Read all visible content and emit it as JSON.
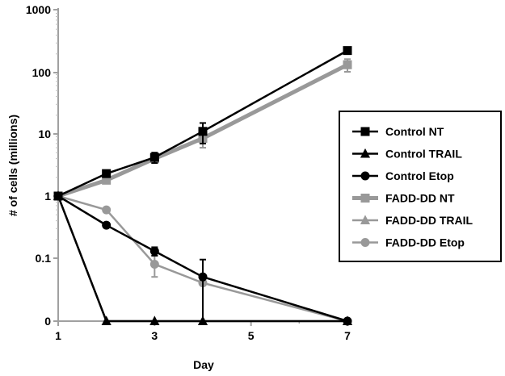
{
  "chart_data": {
    "type": "line",
    "title": "",
    "xlabel": "Day",
    "ylabel": "# of cells (millions)",
    "y_scale": "log",
    "x_ticks": [
      1,
      3,
      5,
      7
    ],
    "y_tick_labels": [
      "1000",
      "100",
      "10",
      "1",
      "0.1",
      "0"
    ],
    "legend_position": "right",
    "series": [
      {
        "name": "Control NT",
        "color": "#000000",
        "marker": "square",
        "x": [
          1,
          2,
          3,
          4,
          7
        ],
        "y": [
          1,
          2.3,
          4.2,
          11,
          220
        ],
        "err": [
          0,
          0,
          0.8,
          4,
          0
        ]
      },
      {
        "name": "Control TRAIL",
        "color": "#000000",
        "marker": "triangle",
        "x": [
          1,
          2,
          3,
          4,
          7
        ],
        "y": [
          1,
          0,
          0,
          0,
          0
        ],
        "err": [
          0,
          0,
          0,
          0,
          0
        ]
      },
      {
        "name": "Control Etop",
        "color": "#000000",
        "marker": "circle",
        "x": [
          1,
          2,
          3,
          4,
          7
        ],
        "y": [
          1,
          0.34,
          0.13,
          0.05,
          0
        ],
        "err": [
          0,
          0,
          0.02,
          0.045,
          0
        ]
      },
      {
        "name": "FADD-DD NT",
        "color": "#999999",
        "marker": "square",
        "x": [
          1,
          2,
          3,
          4,
          7
        ],
        "y": [
          1,
          1.8,
          4.0,
          8.5,
          130
        ],
        "err": [
          0,
          0,
          0.6,
          2.5,
          30
        ]
      },
      {
        "name": "FADD-DD TRAIL",
        "color": "#999999",
        "marker": "triangle",
        "x": [
          1,
          2,
          3,
          4,
          7
        ],
        "y": [
          1,
          0,
          0,
          0,
          0
        ],
        "err": [
          0,
          0,
          0,
          0,
          0
        ]
      },
      {
        "name": "FADD-DD Etop",
        "color": "#999999",
        "marker": "circle",
        "x": [
          1,
          2,
          3,
          4,
          7
        ],
        "y": [
          1,
          0.6,
          0.08,
          0.04,
          0
        ],
        "err": [
          0,
          0,
          0.03,
          0,
          0
        ]
      }
    ]
  }
}
